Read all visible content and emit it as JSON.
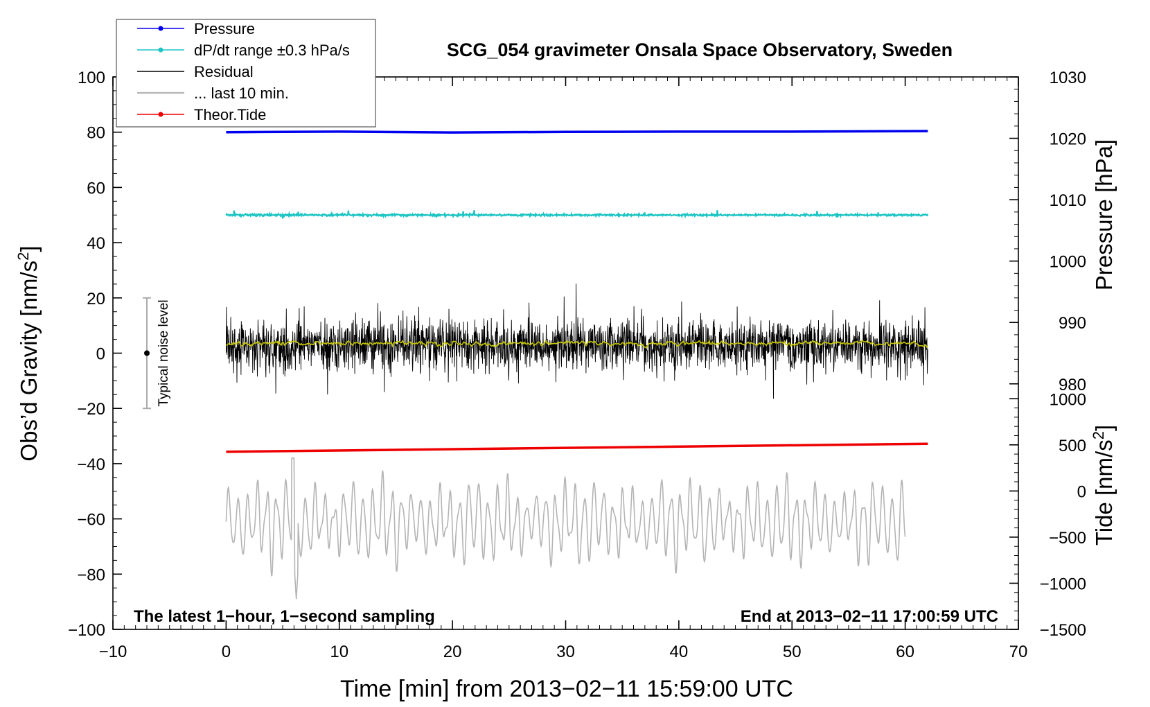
{
  "chart_data": {
    "type": "line",
    "title": "SCG_054 gravimeter Onsala Space Observatory, Sweden",
    "xlabel": "Time [min] from 2013−02−11 15:59:00 UTC",
    "ylabel_left": "Obs’d Gravity [nm/s",
    "ylabel_left_sup": "2",
    "ylabel_left_close": "]",
    "ylabel_right_pressure": "Pressure [hPa]",
    "ylabel_right_tide": "Tide [nm/s",
    "ylabel_right_tide_sup": "2",
    "ylabel_right_tide_close": "]",
    "xlim": [
      -10,
      70
    ],
    "ylim": [
      -100,
      100
    ],
    "xticks": [
      -10,
      0,
      10,
      20,
      30,
      40,
      50,
      60,
      70
    ],
    "xtick_labels": [
      "−10",
      "0",
      "10",
      "20",
      "30",
      "40",
      "50",
      "60",
      "70"
    ],
    "yticks": [
      -100,
      -80,
      -60,
      -40,
      -20,
      0,
      20,
      40,
      60,
      80,
      100
    ],
    "ytick_labels": [
      "−100",
      "−80",
      "−60",
      "−40",
      "−20",
      "0",
      "20",
      "40",
      "60",
      "80",
      "100"
    ],
    "pressure_axis": {
      "ticks": [
        980,
        990,
        1000,
        1010,
        1020,
        1030
      ],
      "tick_labels": [
        "980",
        "990",
        "1000",
        "1010",
        "1020",
        "1030"
      ],
      "range": [
        940,
        1030
      ]
    },
    "tide_axis": {
      "ticks": [
        -1500,
        -1000,
        -500,
        0,
        500,
        1000
      ],
      "tick_labels": [
        "−1500",
        "−1000",
        "−500",
        "0",
        "500",
        "1000"
      ],
      "range": [
        -1500,
        1000
      ],
      "gravity_at_min": -100,
      "gravity_at_max": -16.5
    },
    "legend": {
      "position": "top-left",
      "entries": [
        {
          "label": "Pressure",
          "color": "#0000ee",
          "marker": true
        },
        {
          "label": "dP/dt range ±0.3 hPa/s",
          "color": "#1cc4c4",
          "marker": true
        },
        {
          "label": "Residual",
          "color": "#000000",
          "marker": false
        },
        {
          "label": "... last 10 min.",
          "color": "#b4b4b4",
          "marker": false
        },
        {
          "label": "Theor.Tide",
          "color": "#ee0000",
          "marker": true
        }
      ]
    },
    "annotations": {
      "bottom_left": "The latest 1−hour, 1−second sampling",
      "bottom_right": "End at 2013−02−11 17:00:59 UTC",
      "noise_label": "Typical noise level"
    },
    "noise_bar": {
      "x": -7,
      "center": 0,
      "low": -20,
      "high": 20
    },
    "series": [
      {
        "name": "Pressure",
        "color": "#0000ee",
        "x": [
          0,
          10,
          20,
          30,
          40,
          50,
          62
        ],
        "y": [
          80.0,
          80.2,
          79.9,
          80.1,
          80.2,
          80.2,
          80.4
        ]
      },
      {
        "name": "dP/dt",
        "color": "#1cc4c4",
        "x_range": [
          0,
          62
        ],
        "center": 50,
        "noise": 0.6
      },
      {
        "name": "Residual",
        "color": "#000000",
        "x_range": [
          0,
          62
        ],
        "center": 3,
        "amplitude": 14,
        "min": -28,
        "max": 34
      },
      {
        "name": "Residual smoothed",
        "color": "#c8c800",
        "x_range": [
          0,
          62
        ],
        "center": 3.5,
        "noise": 1.0
      },
      {
        "name": "Theor.Tide",
        "color": "#ee0000",
        "x": [
          0,
          62
        ],
        "y": [
          -35.7,
          -32.8
        ]
      },
      {
        "name": "... last 10 min.",
        "color": "#b4b4b4",
        "x_range": [
          0,
          60
        ],
        "center": -61,
        "min": -89,
        "max": -38
      }
    ]
  }
}
